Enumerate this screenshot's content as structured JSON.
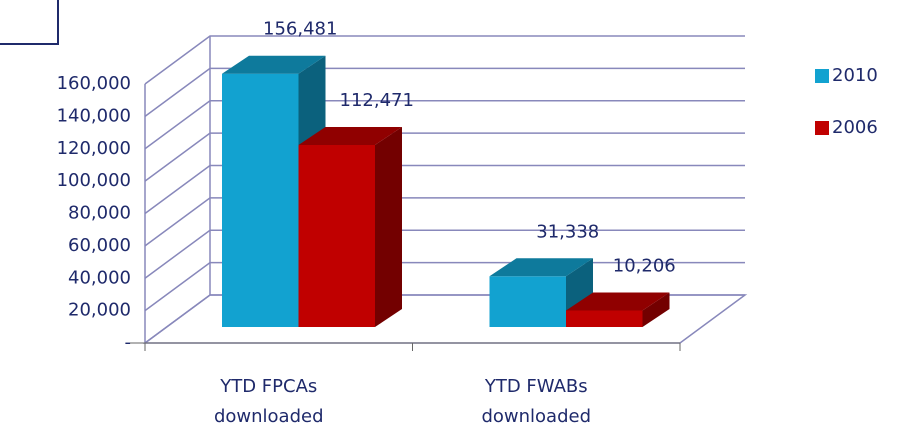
{
  "chart_data": {
    "type": "bar3d",
    "categories": [
      "YTD FPCAs downloaded",
      "YTD FWABs downloaded"
    ],
    "series": [
      {
        "name": "2010",
        "color": "#12a2d0",
        "values": [
          156481,
          31338
        ],
        "value_labels": [
          "156,481",
          "31,338"
        ]
      },
      {
        "name": "2006",
        "color": "#c00000",
        "values": [
          112471,
          10206
        ],
        "value_labels": [
          "112,471",
          "10,206"
        ]
      }
    ],
    "ylim": [
      0,
      160000
    ],
    "yticks": [
      {
        "value": 0,
        "label": "-"
      },
      {
        "value": 20000,
        "label": "20,000"
      },
      {
        "value": 40000,
        "label": "40,000"
      },
      {
        "value": 60000,
        "label": "60,000"
      },
      {
        "value": 80000,
        "label": "80,000"
      },
      {
        "value": 100000,
        "label": "100,000"
      },
      {
        "value": 120000,
        "label": "120,000"
      },
      {
        "value": 140000,
        "label": "140,000"
      },
      {
        "value": 160000,
        "label": "160,000"
      }
    ],
    "grid": true,
    "legend": "right"
  }
}
